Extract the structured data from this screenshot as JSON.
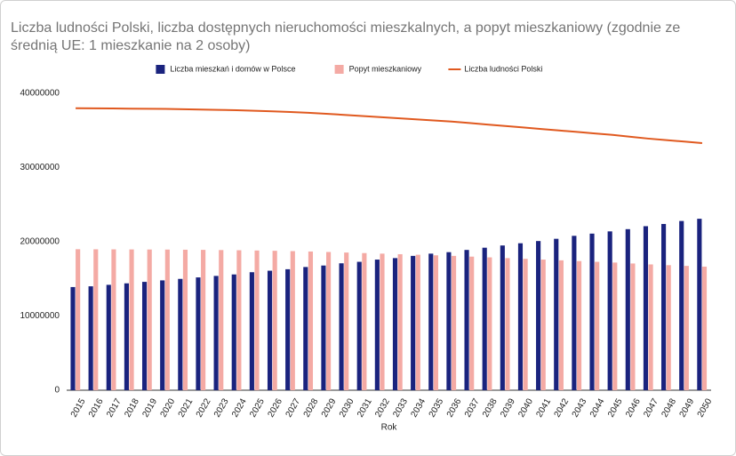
{
  "chart_data": {
    "type": "bar_line",
    "title": "Liczba ludności Polski, liczba dostępnych nieruchomości mieszkalnych, a popyt mieszkaniowy (zgodnie ze średnią UE: 1 mieszkanie na 2 osoby)",
    "x_label": "Rok",
    "categories": [
      "2015",
      "2016",
      "2017",
      "2018",
      "2019",
      "2020",
      "2021",
      "2022",
      "2023",
      "2024",
      "2025",
      "2026",
      "2027",
      "2028",
      "2029",
      "2030",
      "2031",
      "2032",
      "2033",
      "2034",
      "2035",
      "2036",
      "2037",
      "2038",
      "2039",
      "2040",
      "2041",
      "2042",
      "2043",
      "2044",
      "2045",
      "2046",
      "2047",
      "2048",
      "2049",
      "2050"
    ],
    "series": [
      {
        "name": "Liczba mieszkań i domów w Polsce",
        "color": "#1a237e",
        "kind": "bar",
        "values": [
          13900000,
          14000000,
          14200000,
          14400000,
          14600000,
          14800000,
          15000000,
          15200000,
          15400000,
          15600000,
          15900000,
          16100000,
          16300000,
          16600000,
          16800000,
          17100000,
          17300000,
          17600000,
          17800000,
          18100000,
          18400000,
          18600000,
          18900000,
          19200000,
          19500000,
          19800000,
          20100000,
          20400000,
          20800000,
          21100000,
          21400000,
          21700000,
          22100000,
          22400000,
          22800000,
          23100000
        ]
      },
      {
        "name": "Popyt mieszkaniowy",
        "color": "#f4aaa4",
        "kind": "bar",
        "values": [
          19000000,
          18990000,
          18980000,
          18970000,
          18960000,
          18950000,
          18930000,
          18910000,
          18885000,
          18860000,
          18825000,
          18785000,
          18740000,
          18690000,
          18625000,
          18550000,
          18475000,
          18400000,
          18325000,
          18250000,
          18175000,
          18100000,
          18000000,
          17900000,
          17800000,
          17700000,
          17600000,
          17500000,
          17400000,
          17300000,
          17200000,
          17075000,
          16950000,
          16850000,
          16750000,
          16650000
        ]
      },
      {
        "name": "Liczba ludności Polski",
        "color": "#e0591f",
        "kind": "line",
        "values": [
          38000000,
          37980000,
          37960000,
          37940000,
          37920000,
          37900000,
          37860000,
          37820000,
          37770000,
          37720000,
          37650000,
          37570000,
          37480000,
          37380000,
          37250000,
          37100000,
          36950000,
          36800000,
          36650000,
          36500000,
          36350000,
          36200000,
          36000000,
          35800000,
          35600000,
          35400000,
          35200000,
          35000000,
          34800000,
          34600000,
          34400000,
          34150000,
          33900000,
          33700000,
          33500000,
          33300000
        ]
      }
    ],
    "ylim": [
      0,
      40000000
    ],
    "yticks": [
      0,
      10000000,
      20000000,
      30000000,
      40000000
    ],
    "grid": false,
    "legend": "top"
  }
}
